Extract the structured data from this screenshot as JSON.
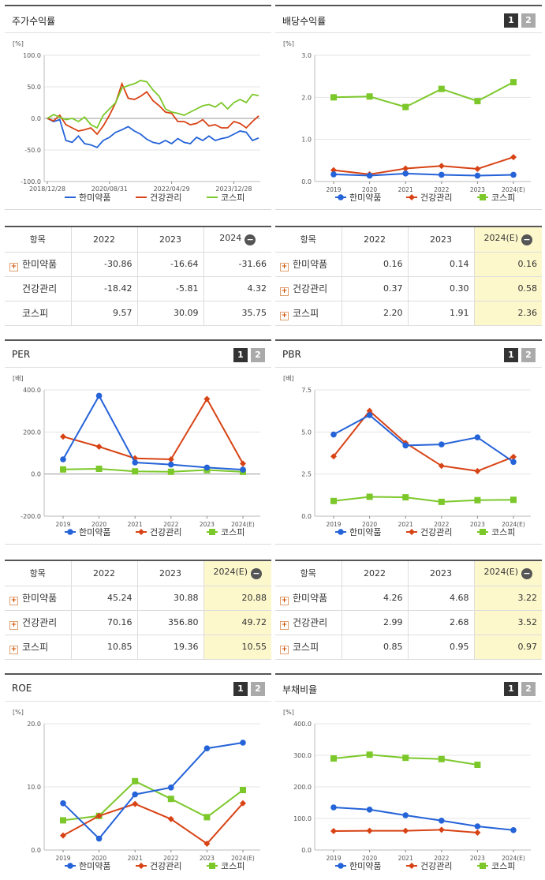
{
  "legend": [
    "한미약품",
    "건강관리",
    "코스피"
  ],
  "colors": {
    "s1": "#2563d8",
    "s2": "#d84315",
    "s3": "#7cc82a",
    "highlight": "#fdf8cc"
  },
  "buttons": {
    "b1": "1",
    "b2": "2"
  },
  "panels": {
    "stock": {
      "title": "주가수익률",
      "unit": "[%]",
      "table": {
        "header": [
          "항목",
          "2022",
          "2023",
          "2024"
        ],
        "rows": [
          {
            "label": "한미약품",
            "values": [
              "-30.86",
              "-16.64",
              "-31.66"
            ]
          },
          {
            "label": "건강관리",
            "values": [
              "-18.42",
              "-5.81",
              "4.32"
            ]
          },
          {
            "label": "코스피",
            "values": [
              "9.57",
              "30.09",
              "35.75"
            ]
          }
        ]
      }
    },
    "dividend": {
      "title": "배당수익률",
      "unit": "[%]",
      "table": {
        "header": [
          "항목",
          "2022",
          "2023",
          "2024(E)"
        ],
        "rows": [
          {
            "label": "한미약품",
            "values": [
              "0.16",
              "0.14",
              "0.16"
            ]
          },
          {
            "label": "건강관리",
            "values": [
              "0.37",
              "0.30",
              "0.58"
            ]
          },
          {
            "label": "코스피",
            "values": [
              "2.20",
              "1.91",
              "2.36"
            ]
          }
        ]
      }
    },
    "per": {
      "title": "PER",
      "unit": "[배]",
      "table": {
        "header": [
          "항목",
          "2022",
          "2023",
          "2024(E)"
        ],
        "rows": [
          {
            "label": "한미약품",
            "values": [
              "45.24",
              "30.88",
              "20.88"
            ]
          },
          {
            "label": "건강관리",
            "values": [
              "70.16",
              "356.80",
              "49.72"
            ]
          },
          {
            "label": "코스피",
            "values": [
              "10.85",
              "19.36",
              "10.55"
            ]
          }
        ]
      }
    },
    "pbr": {
      "title": "PBR",
      "unit": "[배]",
      "table": {
        "header": [
          "항목",
          "2022",
          "2023",
          "2024(E)"
        ],
        "rows": [
          {
            "label": "한미약품",
            "values": [
              "4.26",
              "4.68",
              "3.22"
            ]
          },
          {
            "label": "건강관리",
            "values": [
              "2.99",
              "2.68",
              "3.52"
            ]
          },
          {
            "label": "코스피",
            "values": [
              "0.85",
              "0.95",
              "0.97"
            ]
          }
        ]
      }
    },
    "roe": {
      "title": "ROE",
      "unit": "[%]"
    },
    "debt": {
      "title": "부채비율",
      "unit": "[%]"
    }
  },
  "chart_data": [
    {
      "id": "stock",
      "type": "line",
      "ylim": [
        -100,
        100
      ],
      "yticks": [
        "100.0",
        "50.0",
        "0.0",
        "-50.0",
        "-100.0"
      ],
      "xticks": [
        "2018/12/28",
        "2020/08/31",
        "2022/04/29",
        "2023/12/28"
      ],
      "x": [
        "2018-12-28",
        "2019-02",
        "2019-04",
        "2019-06",
        "2019-08",
        "2019-10",
        "2019-12",
        "2020-02",
        "2020-04",
        "2020-06",
        "2020-08",
        "2020-10",
        "2020-12",
        "2021-02",
        "2021-04",
        "2021-06",
        "2021-08",
        "2021-10",
        "2021-12",
        "2022-02",
        "2022-04",
        "2022-06",
        "2022-08",
        "2022-10",
        "2022-12",
        "2023-02",
        "2023-04",
        "2023-06",
        "2023-08",
        "2023-10",
        "2023-12",
        "2024-02",
        "2024-04",
        "2024-06",
        "2024-08"
      ],
      "series": [
        {
          "name": "한미약품",
          "values": [
            0,
            -5,
            -2,
            -35,
            -38,
            -28,
            -40,
            -42,
            -46,
            -35,
            -30,
            -22,
            -18,
            -13,
            -20,
            -25,
            -33,
            -38,
            -40,
            -35,
            -40,
            -32,
            -38,
            -40,
            -30,
            -35,
            -28,
            -35,
            -32,
            -30,
            -25,
            -20,
            -22,
            -35,
            -31
          ]
        },
        {
          "name": "건강관리",
          "values": [
            0,
            -4,
            5,
            -10,
            -15,
            -20,
            -18,
            -15,
            -25,
            -12,
            5,
            25,
            55,
            32,
            30,
            35,
            42,
            28,
            20,
            10,
            8,
            -5,
            -5,
            -10,
            -8,
            -2,
            -12,
            -10,
            -15,
            -15,
            -5,
            -8,
            -15,
            -5,
            4
          ]
        },
        {
          "name": "코스피",
          "values": [
            0,
            6,
            2,
            -2,
            0,
            -5,
            2,
            -10,
            -15,
            5,
            15,
            25,
            48,
            52,
            55,
            60,
            58,
            45,
            35,
            15,
            10,
            8,
            5,
            10,
            15,
            20,
            22,
            18,
            25,
            15,
            25,
            30,
            25,
            38,
            36
          ]
        }
      ]
    },
    {
      "id": "dividend",
      "type": "line",
      "ylim": [
        0,
        3
      ],
      "yticks": [
        "3.0",
        "2.0",
        "1.0",
        "0.0"
      ],
      "x": [
        "2019",
        "2020",
        "2021",
        "2022",
        "2023",
        "2024(E)"
      ],
      "series": [
        {
          "name": "한미약품",
          "values": [
            0.17,
            0.14,
            0.19,
            0.16,
            0.14,
            0.16
          ]
        },
        {
          "name": "건강관리",
          "values": [
            0.27,
            0.17,
            0.31,
            0.37,
            0.3,
            0.58
          ]
        },
        {
          "name": "코스피",
          "values": [
            2.0,
            2.02,
            1.77,
            2.2,
            1.91,
            2.36
          ]
        }
      ]
    },
    {
      "id": "per",
      "type": "line",
      "ylim": [
        -200,
        400
      ],
      "yticks": [
        "400.0",
        "200.0",
        "0.0",
        "-200.0"
      ],
      "x": [
        "2019",
        "2020",
        "2021",
        "2022",
        "2023",
        "2024(E)"
      ],
      "series": [
        {
          "name": "한미약품",
          "values": [
            70,
            372,
            55,
            45.24,
            30.88,
            20.88
          ]
        },
        {
          "name": "건강관리",
          "values": [
            178,
            130,
            75,
            70.16,
            356.8,
            49.72
          ]
        },
        {
          "name": "코스피",
          "values": [
            22,
            25,
            13,
            10.85,
            19.36,
            10.55
          ]
        }
      ]
    },
    {
      "id": "pbr",
      "type": "line",
      "ylim": [
        0,
        7.5
      ],
      "yticks": [
        "7.5",
        "5.0",
        "2.5",
        "0.0"
      ],
      "x": [
        "2019",
        "2020",
        "2021",
        "2022",
        "2023",
        "2024(E)"
      ],
      "series": [
        {
          "name": "한미약품",
          "values": [
            4.85,
            6.0,
            4.2,
            4.26,
            4.68,
            3.22
          ]
        },
        {
          "name": "건강관리",
          "values": [
            3.55,
            6.25,
            4.35,
            2.99,
            2.68,
            3.52
          ]
        },
        {
          "name": "코스피",
          "values": [
            0.9,
            1.15,
            1.12,
            0.85,
            0.95,
            0.97
          ]
        }
      ]
    },
    {
      "id": "roe",
      "type": "line",
      "ylim": [
        0,
        20
      ],
      "yticks": [
        "20.0",
        "10.0",
        "0.0"
      ],
      "x": [
        "2019",
        "2020",
        "2021",
        "2022",
        "2023",
        "2024(E)"
      ],
      "series": [
        {
          "name": "한미약품",
          "values": [
            7.4,
            1.8,
            8.8,
            9.9,
            16.1,
            17.0
          ]
        },
        {
          "name": "건강관리",
          "values": [
            2.3,
            5.4,
            7.3,
            4.9,
            1.0,
            7.4
          ]
        },
        {
          "name": "코스피",
          "values": [
            4.7,
            5.4,
            10.9,
            8.1,
            5.2,
            9.5
          ]
        }
      ]
    },
    {
      "id": "debt",
      "type": "line",
      "ylim": [
        0,
        400
      ],
      "yticks": [
        "400.0",
        "300.0",
        "200.0",
        "100.0",
        "0.0"
      ],
      "x": [
        "2019",
        "2020",
        "2021",
        "2022",
        "2023",
        "2024(E)"
      ],
      "series": [
        {
          "name": "한미약품",
          "values": [
            135,
            128,
            110,
            93,
            75,
            63
          ]
        },
        {
          "name": "건강관리",
          "values": [
            60,
            61,
            61,
            64,
            55,
            null
          ]
        },
        {
          "name": "코스피",
          "values": [
            290,
            302,
            292,
            288,
            270,
            null
          ]
        }
      ]
    }
  ]
}
